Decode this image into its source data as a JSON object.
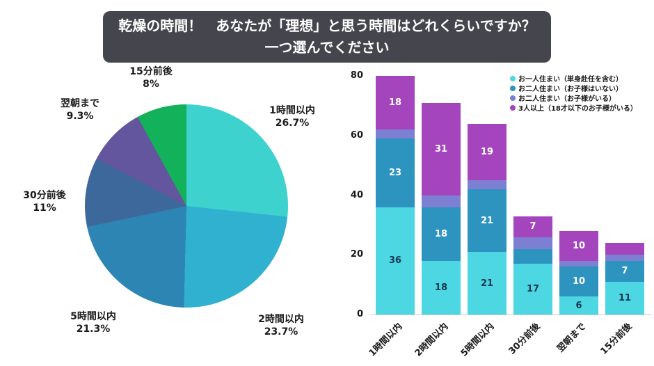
{
  "header": {
    "title_line1": "乾燥の時間！　あなたが「理想」と思う時間はどれくらいですか？",
    "title_line2": "一つ選んでください"
  },
  "chart_data": [
    {
      "type": "pie",
      "labels": [
        "1時間以内",
        "2時間以内",
        "5時間以内",
        "30分前後",
        "翌朝まで",
        "15分前後"
      ],
      "values": [
        26.7,
        23.7,
        21.3,
        11,
        9.3,
        8
      ],
      "value_labels": [
        "26.7%",
        "23.7%",
        "21.3%",
        "11%",
        "9.3%",
        "8%"
      ],
      "colors": [
        "#3ed2cf",
        "#2fb1cf",
        "#2c85b3",
        "#3d689b",
        "#64559f",
        "#13b15a"
      ],
      "start_angle_deg": 0,
      "direction": "clockwise"
    },
    {
      "type": "stacked-bar",
      "categories": [
        "1時間以内",
        "2時間以内",
        "5時間以内",
        "30分前後",
        "翌朝まで",
        "15分前後"
      ],
      "series": [
        {
          "name": "お一人住まい（単身赴任を含む）",
          "color": "#4cd7e3",
          "label_color": "#14384f",
          "values": [
            36,
            18,
            21,
            17,
            6,
            11
          ]
        },
        {
          "name": "お二人住まい（お子様はいない）",
          "color": "#2d93bf",
          "label_color": "#ffffff",
          "values": [
            23,
            18,
            21,
            5,
            10,
            7
          ]
        },
        {
          "name": "お二人住まい（お子様がいる）",
          "color": "#7c7fd2",
          "label_color": "#ffffff",
          "values": [
            3,
            4,
            3,
            4,
            2,
            2
          ]
        },
        {
          "name": "3人以上（18才以下のお子様がいる）",
          "color": "#a545bd",
          "label_color": "#ffffff",
          "values": [
            18,
            31,
            19,
            7,
            10,
            4
          ]
        }
      ],
      "totals": [
        80,
        71,
        64,
        33,
        28,
        24
      ],
      "ylim": [
        0,
        80
      ],
      "yticks": [
        0,
        20,
        40,
        60,
        80
      ],
      "label_min_value": 6,
      "legend_position": "top-right",
      "grid": false
    }
  ]
}
